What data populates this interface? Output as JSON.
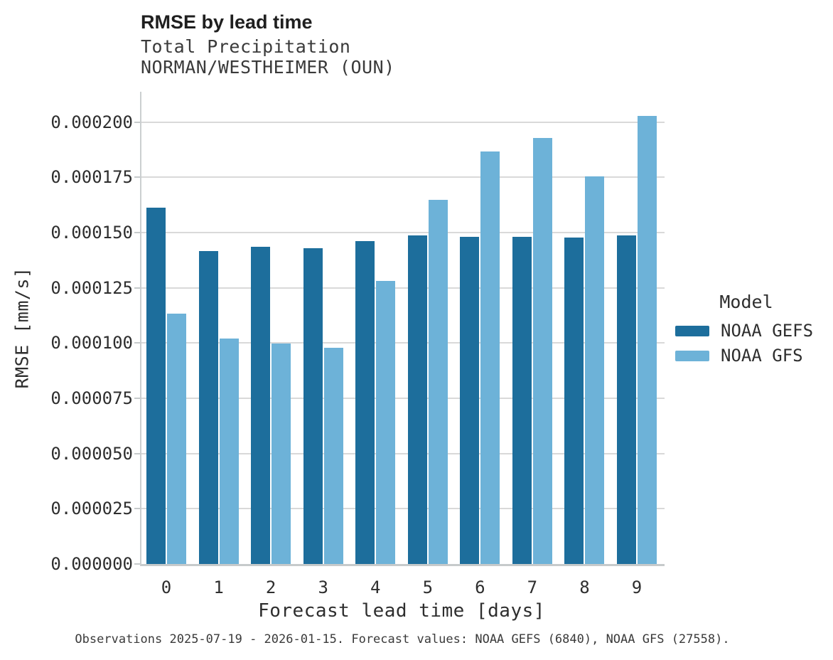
{
  "chart_data": {
    "type": "bar",
    "title": "RMSE by lead time",
    "subtitle": "Total Precipitation",
    "station": "NORMAN/WESTHEIMER (OUN)",
    "xlabel": "Forecast lead time [days]",
    "ylabel": "RMSE [mm/s]",
    "categories": [
      "0",
      "1",
      "2",
      "3",
      "4",
      "5",
      "6",
      "7",
      "8",
      "9"
    ],
    "series": [
      {
        "name": "NOAA GEFS",
        "color": "#1d6e9c",
        "values": [
          0.0001612,
          0.0001417,
          0.0001437,
          0.0001428,
          0.0001461,
          0.0001487,
          0.0001482,
          0.0001482,
          0.0001479,
          0.0001487
        ]
      },
      {
        "name": "NOAA GFS",
        "color": "#6db2d8",
        "values": [
          0.0001134,
          0.000102,
          9.99e-05,
          9.79e-05,
          0.0001281,
          0.0001647,
          0.0001866,
          0.0001928,
          0.0001754,
          0.0002027
        ]
      }
    ],
    "ylim": [
      0,
      0.000214
    ],
    "ytick_step": 2.5e-05,
    "ytick_labels": [
      "0.000000",
      "0.000025",
      "0.000050",
      "0.000075",
      "0.000100",
      "0.000125",
      "0.000150",
      "0.000175",
      "0.000200"
    ],
    "grid": "horizontal",
    "legend_position": "right"
  },
  "legend": {
    "title": "Model"
  },
  "colors": {
    "gridline": "#d9d9d9",
    "spine": "#c6cacb",
    "noaa_gefs": "#1d6e9c",
    "noaa_gfs": "#6db2d8"
  },
  "caption": "Observations 2025-07-19 - 2026-01-15. Forecast values: NOAA GEFS (6840), NOAA GFS (27558)."
}
